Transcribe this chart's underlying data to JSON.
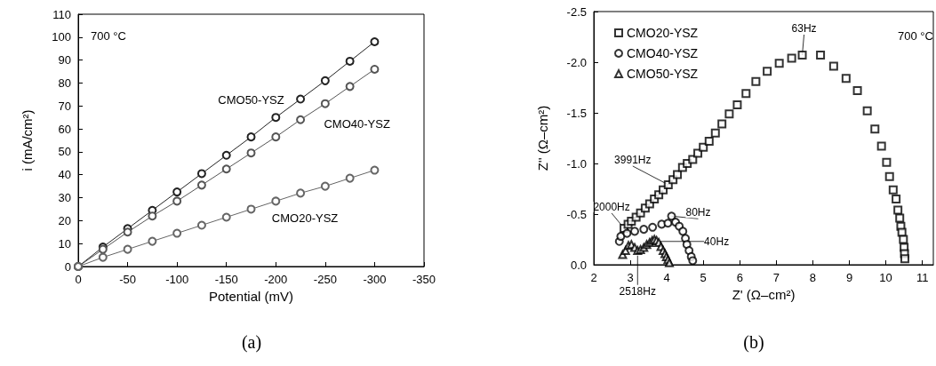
{
  "chart_data": [
    {
      "type": "line",
      "xlabel": "Potential (mV)",
      "ylabel": "i (mA/cm²)",
      "x": [
        0,
        -25,
        -50,
        -75,
        -100,
        -125,
        -150,
        -175,
        -200,
        -225,
        -250,
        -275,
        -300
      ],
      "series": [
        {
          "name": "CMO50-YSZ",
          "color": "#222222",
          "values": [
            0,
            8.5,
            16.5,
            24.5,
            32.5,
            40.5,
            48.5,
            56.5,
            65,
            73,
            81,
            89.5,
            98
          ]
        },
        {
          "name": "CMO40-YSZ",
          "color": "#555555",
          "values": [
            0,
            7.5,
            15,
            22,
            28.5,
            35.5,
            42.5,
            49.5,
            56.5,
            64,
            71,
            78.5,
            86
          ]
        },
        {
          "name": "CMO20-YSZ",
          "color": "#666666",
          "values": [
            0,
            4,
            7.5,
            11,
            14.5,
            18,
            21.5,
            25,
            28.5,
            32,
            35,
            38.5,
            42
          ]
        }
      ],
      "xlim": [
        0,
        -350
      ],
      "xticks": [
        0,
        -50,
        -100,
        -150,
        -200,
        -250,
        -300,
        -350
      ],
      "ylim": [
        0,
        110
      ],
      "yticks": [
        0,
        10,
        20,
        30,
        40,
        50,
        60,
        70,
        80,
        90,
        100,
        110
      ],
      "marker": "circle",
      "legend": false,
      "grid": false,
      "annotations": [
        "700 °C",
        "(a)"
      ]
    },
    {
      "type": "scatter",
      "xlabel": "Z' (Ω–cm²)",
      "ylabel": "Z'' (Ω–cm²)",
      "series": [
        {
          "name": "CMO20-YSZ",
          "color": "#000000",
          "marker": "square",
          "x": [
            2.83,
            2.94,
            3.03,
            3.16,
            3.28,
            3.41,
            3.53,
            3.66,
            3.78,
            3.9,
            4.04,
            4.17,
            4.29,
            4.43,
            4.56,
            4.71,
            4.85,
            5.0,
            5.16,
            5.33,
            5.51,
            5.71,
            5.93,
            6.17,
            6.44,
            6.75,
            7.08,
            7.42,
            7.71,
            8.21,
            8.57,
            8.91,
            9.22,
            9.49,
            9.7,
            9.88,
            10.02,
            10.1,
            10.2,
            10.28,
            10.33,
            10.38,
            10.41,
            10.44,
            10.48,
            10.5,
            10.51,
            10.52
          ],
          "values": [
            -0.36,
            -0.4,
            -0.43,
            -0.47,
            -0.51,
            -0.56,
            -0.6,
            -0.65,
            -0.69,
            -0.74,
            -0.79,
            -0.84,
            -0.89,
            -0.96,
            -1.0,
            -1.04,
            -1.1,
            -1.16,
            -1.22,
            -1.3,
            -1.39,
            -1.49,
            -1.58,
            -1.69,
            -1.81,
            -1.91,
            -1.99,
            -2.04,
            -2.07,
            -2.07,
            -1.96,
            -1.84,
            -1.72,
            -1.52,
            -1.34,
            -1.17,
            -1.01,
            -0.87,
            -0.74,
            -0.65,
            -0.54,
            -0.46,
            -0.38,
            -0.32,
            -0.25,
            -0.17,
            -0.11,
            -0.06
          ]
        },
        {
          "name": "CMO40-YSZ",
          "color": "#000000",
          "marker": "circle",
          "x": [
            2.7,
            2.74,
            2.91,
            3.12,
            3.37,
            3.61,
            3.86,
            4.03,
            4.13,
            4.24,
            4.34,
            4.44,
            4.51,
            4.55,
            4.61,
            4.67,
            4.71
          ],
          "values": [
            -0.23,
            -0.28,
            -0.31,
            -0.33,
            -0.35,
            -0.37,
            -0.4,
            -0.41,
            -0.48,
            -0.42,
            -0.38,
            -0.33,
            -0.26,
            -0.2,
            -0.14,
            -0.08,
            -0.04
          ]
        },
        {
          "name": "CMO50-YSZ",
          "color": "#000000",
          "marker": "triangle",
          "x": [
            2.79,
            2.87,
            2.95,
            3.03,
            3.12,
            3.2,
            3.28,
            3.37,
            3.45,
            3.53,
            3.6,
            3.66,
            3.72,
            3.78,
            3.84,
            3.9,
            3.95,
            3.99,
            4.03,
            4.07
          ],
          "values": [
            -0.1,
            -0.14,
            -0.19,
            -0.2,
            -0.17,
            -0.14,
            -0.15,
            -0.17,
            -0.2,
            -0.22,
            -0.24,
            -0.25,
            -0.24,
            -0.22,
            -0.18,
            -0.14,
            -0.11,
            -0.08,
            -0.05,
            -0.02
          ]
        }
      ],
      "xlim": [
        2,
        11.3
      ],
      "xticks": [
        2,
        3,
        4,
        5,
        6,
        7,
        8,
        9,
        10,
        11
      ],
      "ylim": [
        0,
        -2.5
      ],
      "yticks": [
        {
          "value": 0,
          "label": "0.0"
        },
        {
          "value": -0.5,
          "label": "-0.5"
        },
        {
          "value": -1,
          "label": "-1.0"
        },
        {
          "value": -1.5,
          "label": "-1.5"
        },
        {
          "value": -2,
          "label": "-2.0"
        },
        {
          "value": -2.5,
          "label": "-2.5"
        }
      ],
      "legend": "top left",
      "grid": false,
      "annotations": [
        "700 °C",
        {
          "text": "63Hz",
          "x": 7.71,
          "y": -2.07
        },
        {
          "text": "3991Hz",
          "x": 4.04,
          "y": -0.79
        },
        {
          "text": "2000Hz",
          "x": 2.83,
          "y": -0.36
        },
        {
          "text": "80Hz",
          "x": 4.13,
          "y": -0.48
        },
        {
          "text": "40Hz",
          "x": 3.78,
          "y": -0.23
        },
        {
          "text": "2518Hz",
          "x": 3.2,
          "y": -0.09
        },
        "(b)"
      ]
    }
  ]
}
